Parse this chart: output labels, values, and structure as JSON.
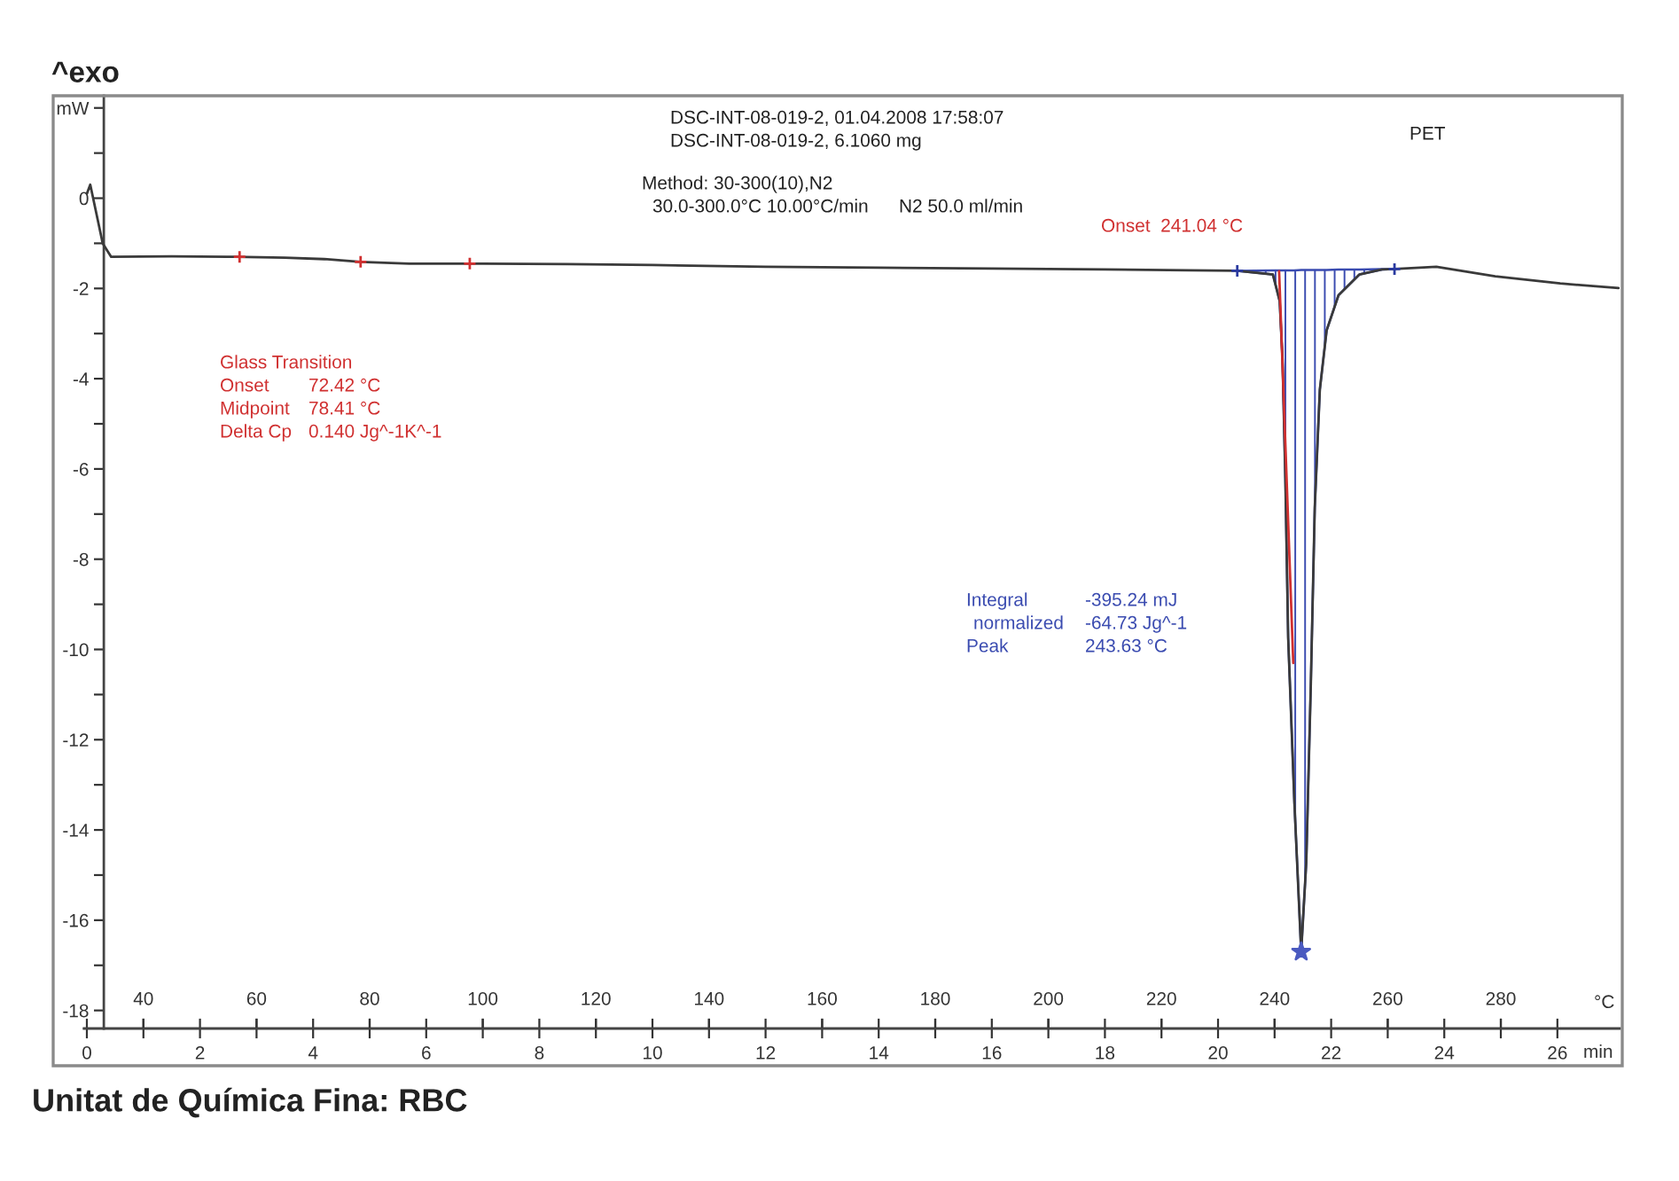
{
  "chart_data": {
    "type": "line",
    "xlabel": "min",
    "x2label": "°C",
    "annotations": [
      "^exo",
      "DSC-INT-08-019-2, 01.04.2008 17:58:07",
      "DSC-INT-08-019-2, 6.1060 mg",
      "Method: 30-300(10),N2",
      "30.0-300.0°C 10.00°C/min",
      "N2 50.0 ml/min",
      "PET",
      "Onset  241.04 °C",
      "Glass Transition",
      "Onset",
      "72.42 °C",
      "Midpoint",
      "78.41 °C",
      "Delta Cp",
      "0.140 Jg^-1K^-1",
      "Integral",
      "-395.24 mJ",
      "normalized",
      "-64.73 Jg^-1",
      "Peak",
      "243.63 °C",
      "Unitat de Química Fina: RBC"
    ],
    "xlim": [
      -0.05,
      27.1
    ],
    "xticks": [
      0,
      {
        "value": 1,
        "label": null
      },
      2,
      {
        "value": 3,
        "label": null
      },
      4,
      {
        "value": 5,
        "label": null
      },
      6,
      {
        "value": 7,
        "label": null
      },
      8,
      {
        "value": 9,
        "label": null
      },
      10,
      {
        "value": 11,
        "label": null
      },
      12,
      {
        "value": 13,
        "label": null
      },
      14,
      {
        "value": 15,
        "label": null
      },
      16,
      {
        "value": 17,
        "label": null
      },
      18,
      {
        "value": 19,
        "label": null
      },
      20,
      {
        "value": 21,
        "label": null
      },
      22,
      {
        "value": 23,
        "label": null
      },
      24,
      {
        "value": 25,
        "label": null
      },
      26
    ],
    "x2lim": [
      29.5,
      301
    ],
    "x2ticks": [
      40,
      60,
      80,
      100,
      120,
      140,
      160,
      180,
      200,
      220,
      240,
      260,
      280
    ],
    "ylim": [
      -18.4,
      2.27
    ],
    "yticks": [
      {
        "value": 2,
        "label": "mW"
      },
      {
        "value": 1,
        "label": null
      },
      0,
      {
        "value": -1,
        "label": null
      },
      -2,
      {
        "value": -3,
        "label": null
      },
      -4,
      {
        "value": -5,
        "label": null
      },
      -6,
      {
        "value": -7,
        "label": null
      },
      -8,
      {
        "value": -9,
        "label": null
      },
      -10,
      {
        "value": -11,
        "label": null
      },
      -12,
      {
        "value": -13,
        "label": null
      },
      -14,
      {
        "value": -15,
        "label": null
      },
      -16,
      {
        "value": -17,
        "label": null
      },
      -18
    ],
    "series": [
      {
        "color": "#3a3a3a",
        "x": [
          0,
          0.06,
          0.28,
          0.43,
          1.5,
          2.6,
          3.5,
          4.2,
          4.84,
          5.7,
          7,
          8.5,
          10,
          12,
          14,
          16,
          18,
          19.5,
          20.34,
          20.97,
          21.09,
          21.14,
          21.19,
          21.24,
          21.35,
          21.47,
          21.56,
          21.64,
          21.71,
          21.8,
          21.92,
          22.13,
          22.5,
          22.9,
          23.12,
          23.86,
          24.9,
          26.05,
          27.08
        ],
        "values": [
          0.1,
          0.3,
          -1.0,
          -1.3,
          -1.29,
          -1.3,
          -1.32,
          -1.35,
          -1.41,
          -1.45,
          -1.45,
          -1.46,
          -1.48,
          -1.52,
          -1.54,
          -1.56,
          -1.58,
          -1.6,
          -1.61,
          -1.69,
          -2.28,
          -3.58,
          -6.2,
          -9.74,
          -13.4,
          -16.7,
          -14.72,
          -10.8,
          -6.86,
          -4.24,
          -2.93,
          -2.15,
          -1.69,
          -1.58,
          -1.57,
          -1.52,
          -1.73,
          -1.89,
          -1.99
        ],
        "lower": [
          null,
          null,
          null,
          null,
          null,
          null,
          null,
          null,
          null,
          null,
          null,
          null,
          null,
          null,
          null,
          null,
          null,
          null,
          -1.61,
          -1.69,
          -2.28,
          -3.58,
          -6.2,
          -9.74,
          -13.4,
          -16.7,
          -14.72,
          -10.8,
          -6.86,
          -4.24,
          -2.93,
          -2.15,
          -1.69,
          -1.58,
          -1.57,
          null,
          null,
          null,
          null
        ],
        "upper": [
          null,
          null,
          null,
          null,
          null,
          null,
          null,
          null,
          null,
          null,
          null,
          null,
          null,
          null,
          null,
          null,
          null,
          null,
          -1.61,
          -1.6,
          -1.6,
          -1.6,
          -1.6,
          -1.6,
          -1.6,
          -1.59,
          -1.59,
          -1.59,
          -1.59,
          -1.59,
          -1.59,
          -1.58,
          -1.58,
          -1.57,
          -1.57,
          null,
          null,
          null,
          null
        ]
      },
      {
        "type": "line",
        "color": "#d03030",
        "x": [
          21.08,
          21.33
        ],
        "values": [
          -1.62,
          -10.3
        ]
      },
      {
        "type": "scatter",
        "color": "#d03030",
        "marker": "cross",
        "x": [
          2.7,
          4.84,
          6.77
        ],
        "values": [
          -1.3,
          -1.41,
          -1.45
        ]
      },
      {
        "type": "scatter",
        "color": "#2a3aa0",
        "marker": "cross",
        "x": [
          20.34,
          23.12
        ],
        "values": [
          -1.61,
          -1.57
        ]
      },
      {
        "type": "scatter",
        "color": "#4a5ac0",
        "marker": "star",
        "x": [
          21.47
        ],
        "values": [
          -16.7
        ]
      }
    ]
  }
}
